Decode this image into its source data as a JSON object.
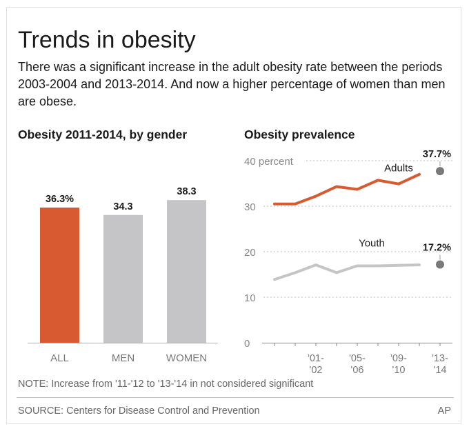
{
  "title": "Trends in obesity",
  "subtitle": "There was a significant increase in the adult obesity rate between the periods 2003-2004 and 2013-2014. And now a higher percentage of women than men are obese.",
  "note": "NOTE: Increase from '11-'12 to '13-'14 in not considered significant",
  "source": "SOURCE: Centers for Disease Control and Prevention",
  "credit": "AP",
  "colors": {
    "accent": "#d85a30",
    "gray": "#c5c5c7",
    "marker": "#7a7a7a"
  },
  "chart_data": [
    {
      "type": "bar",
      "title": "Obesity 2011-2014, by gender",
      "categories": [
        "ALL",
        "MEN",
        "WOMEN"
      ],
      "values": [
        36.3,
        34.3,
        38.3
      ],
      "value_labels": [
        "36.3%",
        "34.3",
        "38.3"
      ],
      "ylim": [
        0,
        40
      ]
    },
    {
      "type": "line",
      "title": "Obesity prevalence",
      "x_ticks": [
        {
          "x": 2,
          "line1": "'01-",
          "line2": "'02"
        },
        {
          "x": 4,
          "line1": "'05-",
          "line2": "'06"
        },
        {
          "x": 6,
          "line1": "'09-",
          "line2": "'10"
        },
        {
          "x": 8,
          "line1": "'13-",
          "line2": "'14"
        }
      ],
      "xlim": [
        0,
        8
      ],
      "ylim": [
        0,
        40
      ],
      "y_ticks": [
        {
          "value": 0,
          "label": "0"
        },
        {
          "value": 10,
          "label": "10"
        },
        {
          "value": 20,
          "label": "20"
        },
        {
          "value": 30,
          "label": "30"
        },
        {
          "value": 40,
          "label": "40 percent"
        }
      ],
      "grid": true,
      "series": [
        {
          "name": "Adults",
          "x": [
            0,
            1,
            2,
            3,
            4,
            5,
            6,
            7,
            8
          ],
          "values": [
            30.5,
            30.5,
            32.2,
            34.3,
            33.7,
            35.7,
            34.9,
            37.0,
            37.7
          ],
          "end_label": "37.7%"
        },
        {
          "name": "Youth",
          "x": [
            0,
            1,
            2,
            3,
            4,
            5,
            6,
            7,
            8
          ],
          "values": [
            13.9,
            15.4,
            17.1,
            15.4,
            16.9,
            16.9,
            17.0,
            17.1,
            17.2
          ],
          "end_label": "17.2%"
        }
      ]
    }
  ]
}
